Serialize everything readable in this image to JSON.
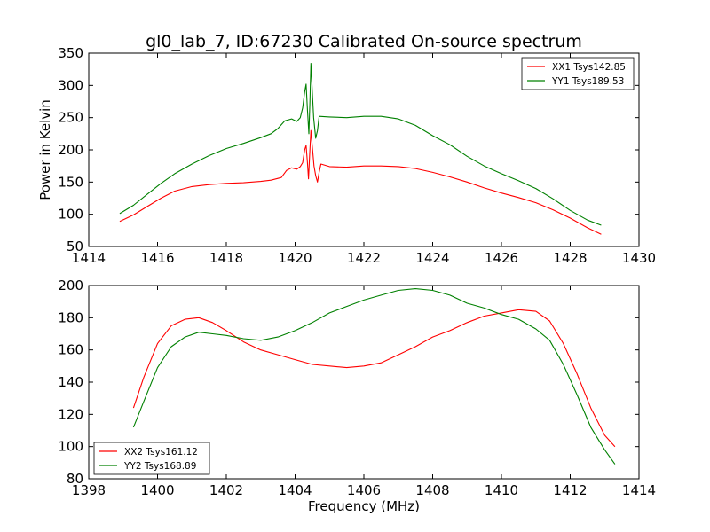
{
  "title": "gl0_lab_7, ID:67230 Calibrated On-source spectrum",
  "chart_data": [
    {
      "type": "line",
      "ylabel": "Power in Kelvin",
      "xlabel": "",
      "xlim": [
        1414,
        1430
      ],
      "ylim": [
        50,
        350
      ],
      "xticks": [
        "1414",
        "1416",
        "1418",
        "1420",
        "1422",
        "1424",
        "1426",
        "1428",
        "1430"
      ],
      "yticks": [
        "50",
        "100",
        "150",
        "200",
        "250",
        "300",
        "350"
      ],
      "legend_position": "top-right",
      "series": [
        {
          "name": "XX1 Tsys142.85",
          "color": "#ff0000",
          "points": [
            [
              1414.9,
              89
            ],
            [
              1415.3,
              99
            ],
            [
              1415.7,
              112
            ],
            [
              1416.1,
              125
            ],
            [
              1416.5,
              136
            ],
            [
              1417.0,
              143
            ],
            [
              1417.5,
              146
            ],
            [
              1418.0,
              148
            ],
            [
              1418.5,
              149
            ],
            [
              1419.0,
              151
            ],
            [
              1419.3,
              153
            ],
            [
              1419.6,
              157
            ],
            [
              1419.75,
              168
            ],
            [
              1419.9,
              172
            ],
            [
              1420.05,
              170
            ],
            [
              1420.15,
              174
            ],
            [
              1420.22,
              180
            ],
            [
              1420.28,
              200
            ],
            [
              1420.32,
              207
            ],
            [
              1420.36,
              180
            ],
            [
              1420.39,
              155
            ],
            [
              1420.42,
              190
            ],
            [
              1420.46,
              230
            ],
            [
              1420.5,
              205
            ],
            [
              1420.55,
              175
            ],
            [
              1420.6,
              160
            ],
            [
              1420.65,
              150
            ],
            [
              1420.7,
              165
            ],
            [
              1420.75,
              178
            ],
            [
              1421.0,
              174
            ],
            [
              1421.5,
              173
            ],
            [
              1422.0,
              175
            ],
            [
              1422.5,
              175
            ],
            [
              1423.0,
              174
            ],
            [
              1423.5,
              171
            ],
            [
              1424.0,
              165
            ],
            [
              1424.5,
              158
            ],
            [
              1425.0,
              150
            ],
            [
              1425.5,
              141
            ],
            [
              1426.0,
              133
            ],
            [
              1426.5,
              126
            ],
            [
              1427.0,
              118
            ],
            [
              1427.5,
              107
            ],
            [
              1428.0,
              94
            ],
            [
              1428.5,
              79
            ],
            [
              1428.9,
              69
            ]
          ]
        },
        {
          "name": "YY1 Tsys189.53",
          "color": "#008000",
          "points": [
            [
              1414.9,
              101
            ],
            [
              1415.3,
              114
            ],
            [
              1415.7,
              131
            ],
            [
              1416.1,
              148
            ],
            [
              1416.5,
              163
            ],
            [
              1417.0,
              178
            ],
            [
              1417.5,
              191
            ],
            [
              1418.0,
              202
            ],
            [
              1418.5,
              210
            ],
            [
              1419.0,
              219
            ],
            [
              1419.3,
              225
            ],
            [
              1419.5,
              233
            ],
            [
              1419.7,
              245
            ],
            [
              1419.9,
              248
            ],
            [
              1420.05,
              244
            ],
            [
              1420.15,
              250
            ],
            [
              1420.22,
              265
            ],
            [
              1420.28,
              290
            ],
            [
              1420.32,
              302
            ],
            [
              1420.36,
              262
            ],
            [
              1420.4,
              225
            ],
            [
              1420.43,
              275
            ],
            [
              1420.46,
              334
            ],
            [
              1420.5,
              290
            ],
            [
              1420.54,
              250
            ],
            [
              1420.6,
              218
            ],
            [
              1420.65,
              230
            ],
            [
              1420.7,
              252
            ],
            [
              1421.0,
              251
            ],
            [
              1421.5,
              250
            ],
            [
              1422.0,
              252
            ],
            [
              1422.5,
              252
            ],
            [
              1423.0,
              248
            ],
            [
              1423.5,
              238
            ],
            [
              1424.0,
              222
            ],
            [
              1424.5,
              208
            ],
            [
              1425.0,
              190
            ],
            [
              1425.5,
              175
            ],
            [
              1426.0,
              163
            ],
            [
              1426.5,
              152
            ],
            [
              1427.0,
              140
            ],
            [
              1427.5,
              124
            ],
            [
              1428.0,
              106
            ],
            [
              1428.5,
              91
            ],
            [
              1428.9,
              83
            ]
          ]
        }
      ]
    },
    {
      "type": "line",
      "ylabel": "",
      "xlabel": "Frequency (MHz)",
      "xlim": [
        1398,
        1414
      ],
      "ylim": [
        80,
        200
      ],
      "xticks": [
        "1398",
        "1400",
        "1402",
        "1404",
        "1406",
        "1408",
        "1410",
        "1412",
        "1414"
      ],
      "yticks": [
        "80",
        "100",
        "120",
        "140",
        "160",
        "180",
        "200"
      ],
      "legend_position": "bottom-left",
      "series": [
        {
          "name": "XX2 Tsys161.12",
          "color": "#ff0000",
          "points": [
            [
              1399.3,
              124
            ],
            [
              1399.6,
              143
            ],
            [
              1400.0,
              164
            ],
            [
              1400.4,
              175
            ],
            [
              1400.8,
              179
            ],
            [
              1401.2,
              180
            ],
            [
              1401.6,
              177
            ],
            [
              1402.0,
              172
            ],
            [
              1402.5,
              165
            ],
            [
              1403.0,
              160
            ],
            [
              1403.5,
              157
            ],
            [
              1404.0,
              154
            ],
            [
              1404.5,
              151
            ],
            [
              1405.0,
              150
            ],
            [
              1405.5,
              149
            ],
            [
              1406.0,
              150
            ],
            [
              1406.5,
              152
            ],
            [
              1407.0,
              157
            ],
            [
              1407.5,
              162
            ],
            [
              1408.0,
              168
            ],
            [
              1408.5,
              172
            ],
            [
              1409.0,
              177
            ],
            [
              1409.5,
              181
            ],
            [
              1410.0,
              183
            ],
            [
              1410.5,
              185
            ],
            [
              1411.0,
              184
            ],
            [
              1411.4,
              178
            ],
            [
              1411.8,
              164
            ],
            [
              1412.2,
              145
            ],
            [
              1412.6,
              124
            ],
            [
              1413.0,
              107
            ],
            [
              1413.3,
              100
            ]
          ]
        },
        {
          "name": "YY2 Tsys168.89",
          "color": "#008000",
          "points": [
            [
              1399.3,
              112
            ],
            [
              1399.6,
              128
            ],
            [
              1400.0,
              149
            ],
            [
              1400.4,
              162
            ],
            [
              1400.8,
              168
            ],
            [
              1401.2,
              171
            ],
            [
              1401.6,
              170
            ],
            [
              1402.0,
              169
            ],
            [
              1402.5,
              167
            ],
            [
              1403.0,
              166
            ],
            [
              1403.5,
              168
            ],
            [
              1404.0,
              172
            ],
            [
              1404.5,
              177
            ],
            [
              1405.0,
              183
            ],
            [
              1405.5,
              187
            ],
            [
              1406.0,
              191
            ],
            [
              1406.5,
              194
            ],
            [
              1407.0,
              197
            ],
            [
              1407.5,
              198
            ],
            [
              1408.0,
              197
            ],
            [
              1408.5,
              194
            ],
            [
              1409.0,
              189
            ],
            [
              1409.5,
              186
            ],
            [
              1410.0,
              182
            ],
            [
              1410.5,
              179
            ],
            [
              1411.0,
              173
            ],
            [
              1411.4,
              166
            ],
            [
              1411.8,
              151
            ],
            [
              1412.2,
              132
            ],
            [
              1412.6,
              112
            ],
            [
              1413.0,
              98
            ],
            [
              1413.3,
              89
            ]
          ]
        }
      ]
    }
  ]
}
